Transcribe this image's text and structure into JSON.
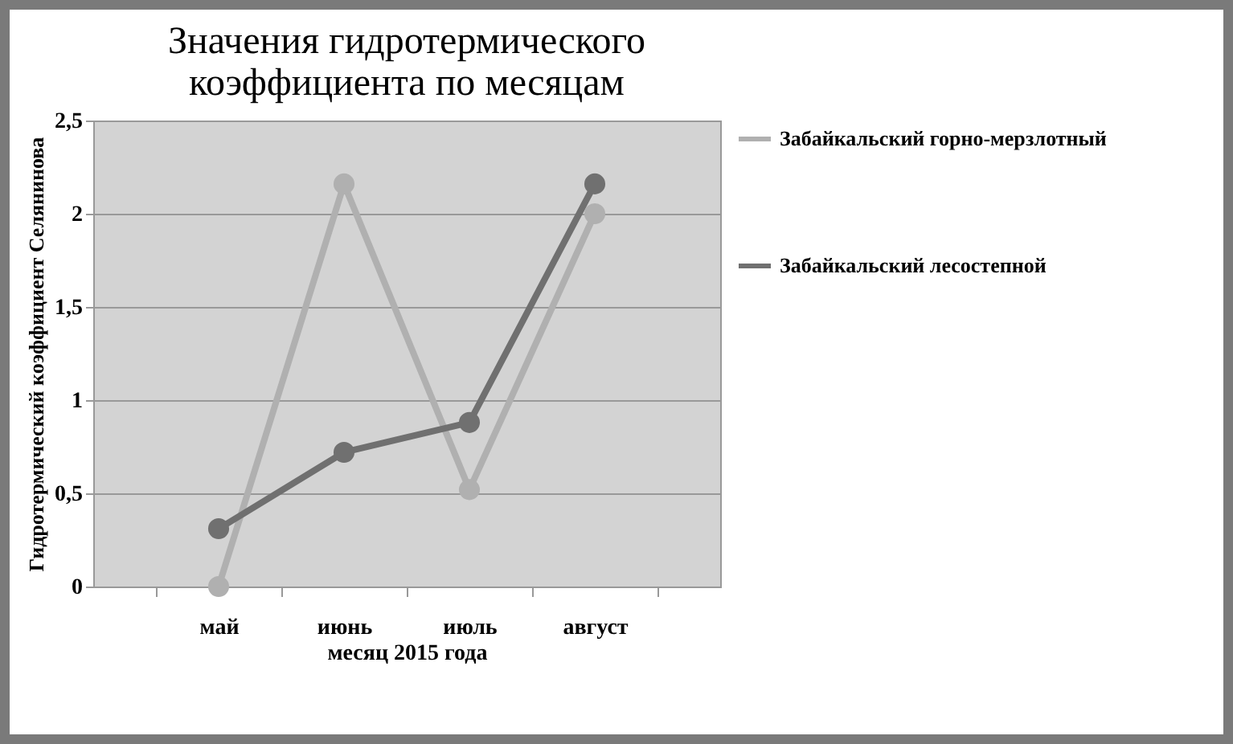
{
  "chart_data": {
    "type": "line",
    "title": [
      "Значения гидротермического",
      "коэффициента по месяцам"
    ],
    "xlabel": "месяц  2015 года",
    "ylabel": "Гидротермический коэффициент Селянинова",
    "categories": [
      "май",
      "июнь",
      "июль",
      "август"
    ],
    "series": [
      {
        "name": "Забайкальский горно-мерзлотный",
        "color": "#b0b0b0",
        "values": [
          0,
          2.16,
          0.52,
          2.0
        ]
      },
      {
        "name": "Забайкальский лесостепной",
        "color": "#707070",
        "values": [
          0.31,
          0.72,
          0.88,
          2.16
        ]
      }
    ],
    "ylim": [
      0,
      2.5
    ],
    "yticks": [
      0,
      {
        "value": 0.5,
        "label": "0,5"
      },
      1,
      {
        "value": 1.5,
        "label": "1,5"
      },
      2,
      {
        "value": 2.5,
        "label": "2,5"
      }
    ],
    "grid": "y",
    "legend": "right",
    "marker": "circle",
    "line_style": "solid"
  }
}
